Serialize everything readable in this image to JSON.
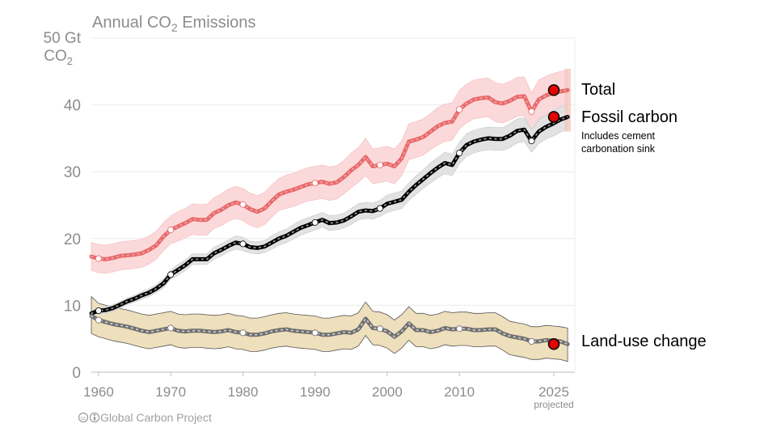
{
  "chart_data": {
    "type": "line",
    "title": "Annual CO",
    "title_sub": "2",
    "title_suffix": " Emissions",
    "y_unit_line1": "50 Gt",
    "y_unit_line2": "CO",
    "y_unit_sub": "2",
    "xlim": [
      1959,
      2026
    ],
    "ylim": [
      0,
      50
    ],
    "grid": true,
    "yticks": [
      {
        "value": 0,
        "label": "0"
      },
      {
        "value": 10,
        "label": "10"
      },
      {
        "value": 20,
        "label": "20"
      },
      {
        "value": 30,
        "label": "30"
      },
      {
        "value": 40,
        "label": "40"
      }
    ],
    "xticks": [
      {
        "value": 1960,
        "label": "1960"
      },
      {
        "value": 1970,
        "label": "1970"
      },
      {
        "value": 1980,
        "label": "1980"
      },
      {
        "value": 1990,
        "label": "1990"
      },
      {
        "value": 2000,
        "label": "2000"
      },
      {
        "value": 2010,
        "label": "2010"
      },
      {
        "value": 2025,
        "label": "2025"
      }
    ],
    "projected_label": "projected",
    "x": [
      1959,
      1960,
      1961,
      1962,
      1963,
      1964,
      1965,
      1966,
      1967,
      1968,
      1969,
      1970,
      1971,
      1972,
      1973,
      1974,
      1975,
      1976,
      1977,
      1978,
      1979,
      1980,
      1981,
      1982,
      1983,
      1984,
      1985,
      1986,
      1987,
      1988,
      1989,
      1990,
      1991,
      1992,
      1993,
      1994,
      1995,
      1996,
      1997,
      1998,
      1999,
      2000,
      2001,
      2002,
      2003,
      2004,
      2005,
      2006,
      2007,
      2008,
      2009,
      2010,
      2011,
      2012,
      2013,
      2014,
      2015,
      2016,
      2017,
      2018,
      2019,
      2020,
      2021,
      2022,
      2023,
      2024,
      2025
    ],
    "series": [
      {
        "name": "Total",
        "color": "#e8696b",
        "band_color": "#fbd9da",
        "dot_color": "#f2a3a4",
        "values": [
          17.3,
          17.0,
          16.9,
          17.1,
          17.4,
          17.5,
          17.6,
          17.8,
          18.3,
          19.0,
          20.3,
          21.3,
          21.8,
          22.3,
          22.9,
          22.8,
          22.8,
          23.8,
          24.3,
          25.0,
          25.4,
          25.1,
          24.4,
          24.0,
          24.5,
          25.6,
          26.6,
          27.0,
          27.3,
          27.7,
          28.1,
          28.3,
          28.5,
          28.2,
          28.4,
          29.2,
          30.2,
          31.0,
          32.2,
          30.8,
          31.0,
          31.2,
          30.8,
          32.0,
          34.5,
          34.8,
          35.2,
          36.0,
          36.8,
          37.3,
          37.5,
          39.3,
          40.2,
          40.8,
          41.0,
          41.1,
          40.4,
          40.2,
          40.6,
          41.2,
          41.3,
          39.0,
          40.8,
          41.4,
          41.8,
          42.0,
          42.2
        ],
        "band_low": [
          15.2,
          14.9,
          14.8,
          15.0,
          15.3,
          15.4,
          15.5,
          15.7,
          16.2,
          16.9,
          18.2,
          19.2,
          19.6,
          20.1,
          20.6,
          20.5,
          20.5,
          21.5,
          21.9,
          22.6,
          23.0,
          22.7,
          22.0,
          21.6,
          22.1,
          23.2,
          24.2,
          24.5,
          24.8,
          25.2,
          25.6,
          25.8,
          26.0,
          25.7,
          25.9,
          26.7,
          27.6,
          28.4,
          29.4,
          28.2,
          28.4,
          28.6,
          28.2,
          29.4,
          31.8,
          32.1,
          32.5,
          33.3,
          34.0,
          34.5,
          34.7,
          36.4,
          37.3,
          37.9,
          38.1,
          38.2,
          37.5,
          37.3,
          37.7,
          38.3,
          38.4,
          36.2,
          37.9,
          38.5,
          38.9,
          39.0,
          39.2
        ],
        "band_high": [
          19.4,
          19.1,
          19.0,
          19.2,
          19.5,
          19.6,
          19.7,
          19.9,
          20.4,
          21.1,
          22.4,
          23.4,
          24.0,
          24.5,
          25.2,
          25.1,
          25.1,
          26.1,
          26.7,
          27.4,
          27.8,
          27.5,
          26.8,
          26.4,
          26.9,
          28.0,
          29.0,
          29.5,
          29.8,
          30.2,
          30.6,
          30.8,
          31.0,
          30.7,
          30.9,
          31.7,
          32.8,
          33.6,
          35.0,
          33.4,
          33.6,
          33.8,
          33.4,
          34.6,
          37.2,
          37.5,
          37.9,
          38.7,
          39.6,
          40.1,
          40.3,
          42.2,
          43.1,
          43.7,
          43.9,
          44.0,
          43.3,
          43.1,
          43.5,
          44.1,
          44.2,
          41.8,
          43.7,
          44.3,
          44.7,
          45.0,
          45.2
        ]
      },
      {
        "name": "Fossil carbon",
        "color": "#000000",
        "band_color": "#e2e2e2",
        "dot_color": "#9a9a9a",
        "values": [
          8.8,
          9.2,
          9.3,
          9.6,
          10.1,
          10.6,
          11.0,
          11.5,
          11.9,
          12.5,
          13.3,
          14.6,
          15.3,
          16.0,
          16.9,
          16.9,
          16.9,
          17.8,
          18.3,
          18.9,
          19.4,
          19.2,
          18.7,
          18.6,
          18.8,
          19.4,
          20.0,
          20.4,
          21.0,
          21.6,
          22.0,
          22.4,
          22.8,
          22.3,
          22.4,
          22.7,
          23.3,
          24.0,
          24.2,
          24.1,
          24.5,
          25.2,
          25.5,
          25.8,
          27.0,
          28.0,
          28.9,
          29.8,
          30.6,
          31.3,
          31.0,
          32.8,
          34.0,
          34.5,
          34.8,
          35.0,
          34.9,
          34.9,
          35.4,
          36.1,
          36.3,
          34.6,
          36.0,
          36.7,
          37.2,
          37.8,
          38.2
        ],
        "band_low": [
          8.4,
          8.7,
          8.8,
          9.1,
          9.6,
          10.1,
          10.5,
          10.9,
          11.3,
          11.9,
          12.6,
          13.9,
          14.5,
          15.2,
          16.1,
          16.1,
          16.1,
          16.9,
          17.4,
          18.0,
          18.4,
          18.2,
          17.8,
          17.7,
          17.9,
          18.4,
          19.0,
          19.4,
          19.9,
          20.5,
          20.9,
          21.3,
          21.7,
          21.2,
          21.3,
          21.6,
          22.1,
          22.8,
          23.0,
          22.9,
          23.3,
          23.9,
          24.2,
          24.5,
          25.7,
          26.6,
          27.5,
          28.3,
          29.1,
          29.7,
          29.4,
          31.2,
          32.3,
          32.8,
          33.1,
          33.3,
          33.2,
          33.2,
          33.6,
          34.3,
          34.5,
          32.9,
          34.2,
          34.9,
          35.3,
          35.9,
          36.3
        ],
        "band_high": [
          9.2,
          9.7,
          9.8,
          10.1,
          10.6,
          11.1,
          11.5,
          12.1,
          12.5,
          13.1,
          14.0,
          15.3,
          16.1,
          16.8,
          17.7,
          17.7,
          17.7,
          18.7,
          19.2,
          19.8,
          20.4,
          20.2,
          19.6,
          19.5,
          19.7,
          20.4,
          21.0,
          21.4,
          22.1,
          22.7,
          23.1,
          23.5,
          23.9,
          23.4,
          23.5,
          23.8,
          24.5,
          25.2,
          25.4,
          25.3,
          25.7,
          26.5,
          26.8,
          27.1,
          28.3,
          29.4,
          30.3,
          31.3,
          32.1,
          32.9,
          32.6,
          34.4,
          35.7,
          36.2,
          36.5,
          36.7,
          36.6,
          36.6,
          37.2,
          37.9,
          38.1,
          36.3,
          37.8,
          38.5,
          39.1,
          39.7,
          40.1
        ]
      },
      {
        "name": "Land-use change",
        "color": "#6f6f6f",
        "band_color": "#eedfbd",
        "dot_color": "#cfcfcf",
        "values": [
          8.4,
          7.8,
          7.5,
          7.2,
          7.0,
          6.8,
          6.5,
          6.2,
          6.0,
          6.2,
          6.4,
          6.6,
          6.2,
          6.1,
          6.2,
          6.2,
          6.1,
          6.0,
          6.1,
          6.3,
          6.0,
          5.9,
          5.6,
          5.6,
          5.8,
          6.1,
          6.3,
          6.4,
          6.2,
          6.1,
          6.0,
          5.9,
          5.6,
          5.6,
          5.8,
          6.0,
          5.9,
          6.4,
          8.0,
          6.6,
          6.5,
          6.1,
          5.3,
          6.1,
          7.3,
          6.3,
          6.3,
          6.0,
          6.2,
          6.6,
          6.4,
          6.5,
          6.5,
          6.3,
          6.3,
          6.4,
          6.4,
          5.8,
          5.4,
          5.2,
          5.0,
          4.6,
          4.6,
          4.8,
          4.7,
          4.6,
          4.2
        ],
        "band_low": [
          5.8,
          5.3,
          5.0,
          4.7,
          4.5,
          4.3,
          4.0,
          3.7,
          3.5,
          3.7,
          3.9,
          4.1,
          3.7,
          3.6,
          3.7,
          3.7,
          3.6,
          3.5,
          3.6,
          3.8,
          3.5,
          3.4,
          3.1,
          3.1,
          3.3,
          3.6,
          3.8,
          3.9,
          3.7,
          3.6,
          3.5,
          3.4,
          3.1,
          3.1,
          3.3,
          3.5,
          3.4,
          3.9,
          5.5,
          4.1,
          4.0,
          3.6,
          2.8,
          3.6,
          4.8,
          3.8,
          3.8,
          3.5,
          3.7,
          4.1,
          3.9,
          4.0,
          4.0,
          3.8,
          3.8,
          3.9,
          3.9,
          3.3,
          2.6,
          2.4,
          2.2,
          1.9,
          1.9,
          2.1,
          2.0,
          1.9,
          1.6
        ],
        "band_high": [
          11.3,
          10.3,
          10.0,
          9.7,
          9.5,
          9.3,
          9.0,
          8.7,
          8.5,
          8.7,
          8.9,
          9.1,
          8.7,
          8.6,
          8.7,
          8.7,
          8.6,
          8.5,
          8.6,
          8.8,
          8.5,
          8.4,
          8.1,
          8.1,
          8.3,
          8.6,
          8.8,
          8.9,
          8.7,
          8.6,
          8.5,
          8.4,
          8.1,
          8.1,
          8.3,
          8.5,
          8.4,
          8.9,
          10.5,
          9.1,
          9.0,
          8.6,
          7.8,
          8.6,
          9.8,
          8.8,
          8.8,
          8.5,
          8.7,
          9.1,
          8.9,
          9.0,
          9.0,
          8.8,
          8.8,
          8.9,
          8.9,
          8.3,
          7.6,
          7.4,
          7.2,
          6.8,
          6.8,
          7.0,
          6.9,
          6.8,
          6.6
        ]
      }
    ],
    "endpoint_color": "#e10600",
    "labels": {
      "total": "Total",
      "fossil": "Fossil carbon",
      "fossil_note_1": "Includes cement",
      "fossil_note_2": "carbonation sink",
      "landuse": "Land-use change"
    }
  },
  "footer": {
    "credit": "Global Carbon Project",
    "license_icon": "cc-by-icon"
  }
}
